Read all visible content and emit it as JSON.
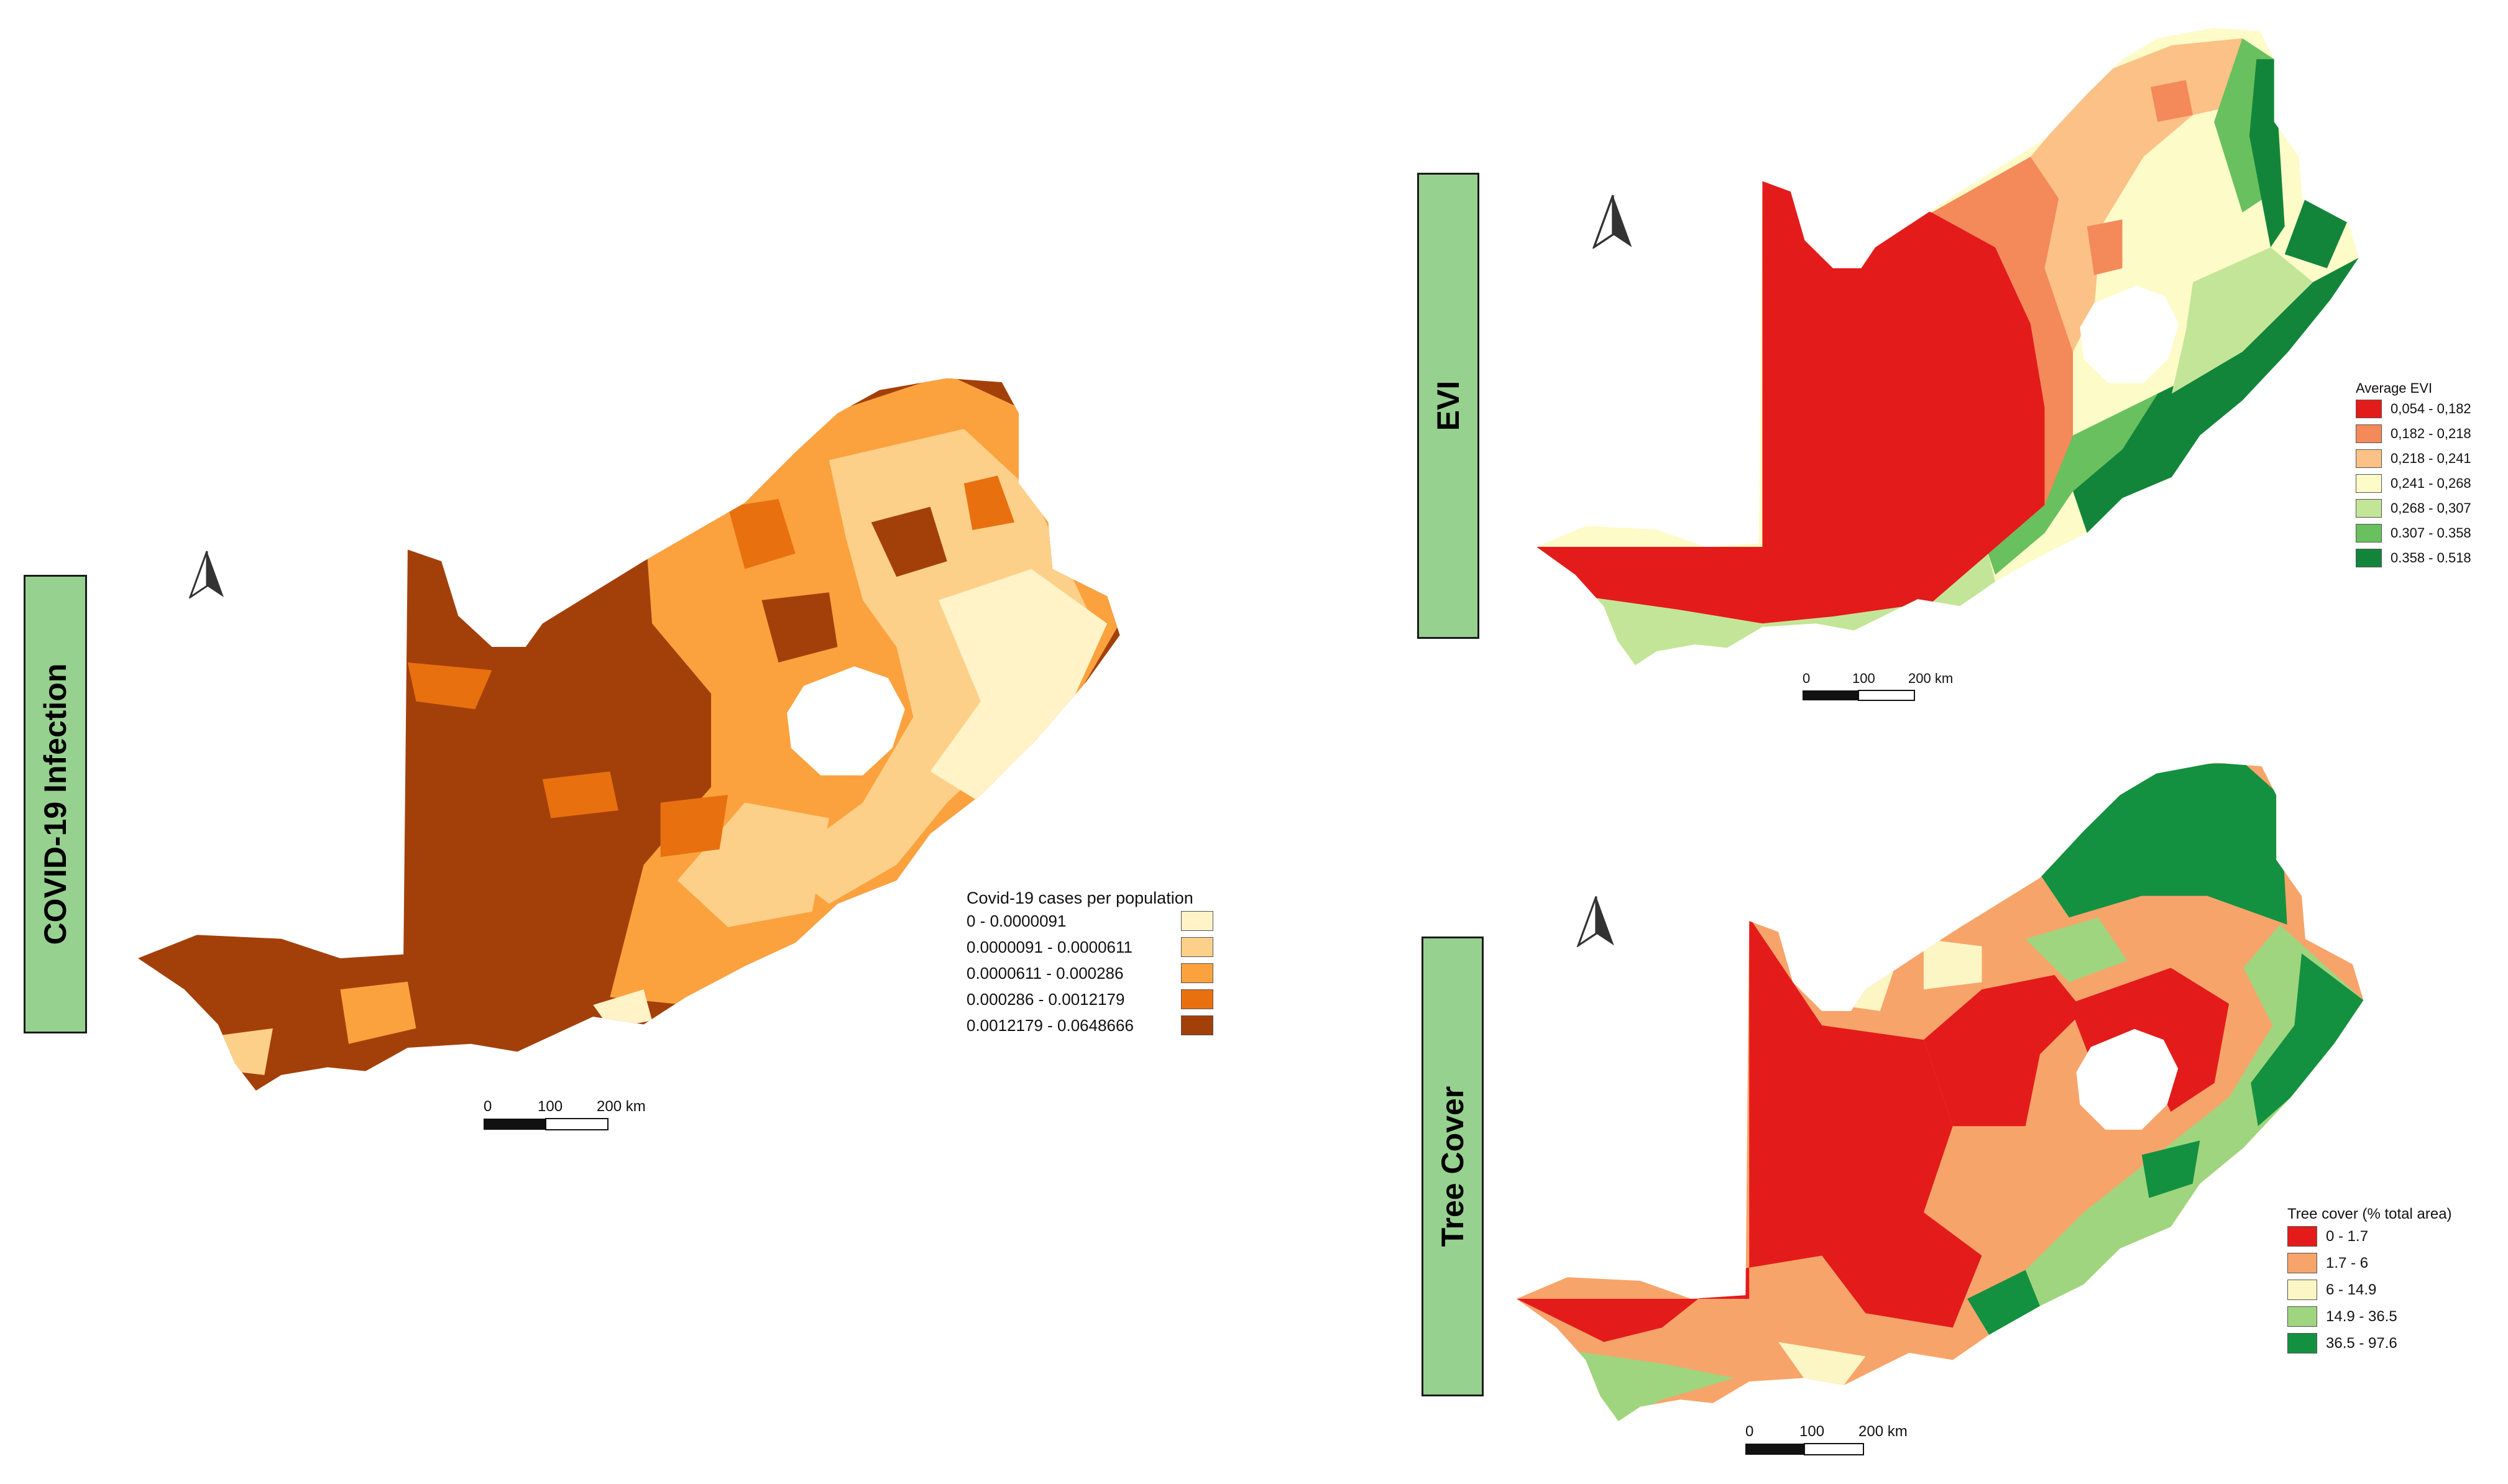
{
  "panels": {
    "covid": {
      "title": "COVID-19 Infection",
      "legend_title": "Covid-19 cases per population",
      "legend": [
        {
          "label": "0 - 0.0000091",
          "color": "#fff3c7"
        },
        {
          "label": "0.0000091 - 0.0000611",
          "color": "#fdd08a"
        },
        {
          "label": "0.0000611 - 0.000286",
          "color": "#fba23e"
        },
        {
          "label": "0.000286 - 0.0012179",
          "color": "#e9700f"
        },
        {
          "label": "0.0012179 - 0.0648666",
          "color": "#a3400a"
        }
      ],
      "scale": {
        "t0": "0",
        "t1": "100",
        "t2": "200 km"
      }
    },
    "evi": {
      "title": "EVI",
      "legend_title": "Average EVI",
      "legend": [
        {
          "label": "0,054 - 0,182",
          "color": "#e41b1b"
        },
        {
          "label": "0,182 - 0,218",
          "color": "#f4895a"
        },
        {
          "label": "0,218 - 0,241",
          "color": "#fbc187"
        },
        {
          "label": "0,241 - 0,268",
          "color": "#fdfbc8"
        },
        {
          "label": "0,268 - 0,307",
          "color": "#c3e597"
        },
        {
          "label": "0.307 - 0.358",
          "color": "#69c05e"
        },
        {
          "label": "0.358 - 0.518",
          "color": "#13853b"
        }
      ],
      "scale": {
        "t0": "0",
        "t1": "100",
        "t2": "200 km"
      }
    },
    "tree": {
      "title": "Tree Cover",
      "legend_title": "Tree cover (% total area)",
      "legend": [
        {
          "label": "0 - 1.7",
          "color": "#e41b1b"
        },
        {
          "label": "1.7 - 6",
          "color": "#f7a46a"
        },
        {
          "label": "6 - 14.9",
          "color": "#fbf6c4"
        },
        {
          "label": "14.9 - 36.5",
          "color": "#9fd57e"
        },
        {
          "label": "36.5 - 97.6",
          "color": "#139140"
        }
      ],
      "scale": {
        "t0": "0",
        "t1": "100",
        "t2": "200 km"
      }
    }
  },
  "icons": {
    "north_arrow": "north-arrow-icon"
  }
}
